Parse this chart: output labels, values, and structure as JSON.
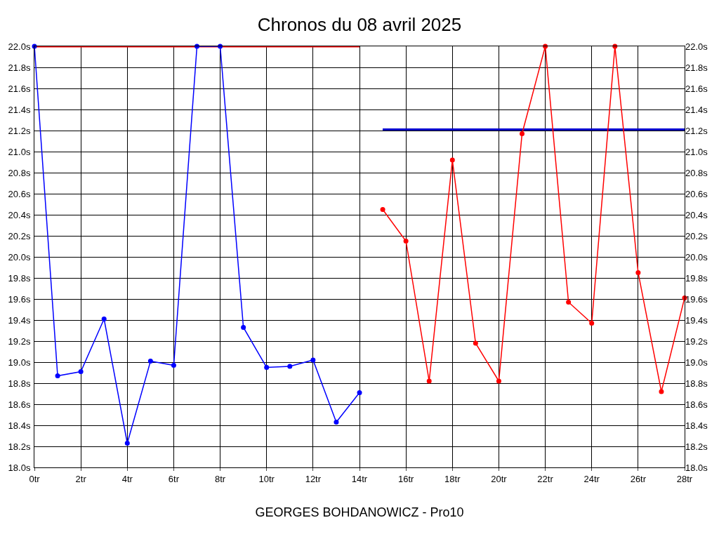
{
  "chart_data": {
    "type": "line",
    "title": "Chronos du 08 avril 2025",
    "xlabel": "GEORGES BOHDANOWICZ - Pro10",
    "series": [
      {
        "color": "#ff0000",
        "marker": "none",
        "x": [
          0,
          14
        ],
        "values": [
          22.0,
          22.0
        ]
      },
      {
        "color": "#0000cc",
        "marker": "none",
        "x": [
          15,
          28
        ],
        "values": [
          21.21,
          21.21
        ]
      },
      {
        "color": "#0000ff",
        "x": [
          0,
          1,
          2,
          3,
          4,
          5,
          6,
          7,
          8,
          9,
          10,
          11,
          12,
          13,
          14
        ],
        "values": [
          22.0,
          18.87,
          18.91,
          19.41,
          18.23,
          19.01,
          18.97,
          22.0,
          22.0,
          19.33,
          18.95,
          18.96,
          19.02,
          18.43,
          18.71
        ]
      },
      {
        "color": "#ff0000",
        "x": [
          15,
          16,
          17,
          18,
          19,
          20,
          21,
          22,
          23,
          24,
          25,
          26,
          27,
          28
        ],
        "values": [
          20.45,
          20.15,
          18.82,
          20.92,
          19.18,
          18.82,
          21.17,
          22.0,
          19.57,
          19.37,
          22.0,
          19.85,
          18.72,
          19.61
        ]
      }
    ],
    "marker": "circle",
    "line_style": "solid",
    "grid": true,
    "xlim": [
      0,
      28
    ],
    "xticks": [
      {
        "value": 0,
        "label": "0tr"
      },
      {
        "value": 2,
        "label": "2tr"
      },
      {
        "value": 4,
        "label": "4tr"
      },
      {
        "value": 6,
        "label": "6tr"
      },
      {
        "value": 8,
        "label": "8tr"
      },
      {
        "value": 10,
        "label": "10tr"
      },
      {
        "value": 12,
        "label": "12tr"
      },
      {
        "value": 14,
        "label": "14tr"
      },
      {
        "value": 16,
        "label": "16tr"
      },
      {
        "value": 18,
        "label": "18tr"
      },
      {
        "value": 20,
        "label": "20tr"
      },
      {
        "value": 22,
        "label": "22tr"
      },
      {
        "value": 24,
        "label": "24tr"
      },
      {
        "value": 26,
        "label": "26tr"
      },
      {
        "value": 28,
        "label": "28tr"
      }
    ],
    "ylim": [
      18.0,
      22.0
    ],
    "yticks": [
      {
        "value": 18.0,
        "label": "18.0s"
      },
      {
        "value": 18.2,
        "label": "18.2s"
      },
      {
        "value": 18.4,
        "label": "18.4s"
      },
      {
        "value": 18.6,
        "label": "18.6s"
      },
      {
        "value": 18.8,
        "label": "18.8s"
      },
      {
        "value": 19.0,
        "label": "19.0s"
      },
      {
        "value": 19.2,
        "label": "19.2s"
      },
      {
        "value": 19.4,
        "label": "19.4s"
      },
      {
        "value": 19.6,
        "label": "19.6s"
      },
      {
        "value": 19.8,
        "label": "19.8s"
      },
      {
        "value": 20.0,
        "label": "20.0s"
      },
      {
        "value": 20.2,
        "label": "20.2s"
      },
      {
        "value": 20.4,
        "label": "20.4s"
      },
      {
        "value": 20.6,
        "label": "20.6s"
      },
      {
        "value": 20.8,
        "label": "20.8s"
      },
      {
        "value": 21.0,
        "label": "21.0s"
      },
      {
        "value": 21.2,
        "label": "21.2s"
      },
      {
        "value": 21.4,
        "label": "21.4s"
      },
      {
        "value": 21.6,
        "label": "21.6s"
      },
      {
        "value": 21.8,
        "label": "21.8s"
      },
      {
        "value": 22.0,
        "label": "22.0s"
      }
    ],
    "y2lim": [
      18.0,
      22.0
    ],
    "y2ticks": [
      {
        "value": 18.0,
        "label": "18.0s"
      },
      {
        "value": 18.2,
        "label": "18.2s"
      },
      {
        "value": 18.4,
        "label": "18.4s"
      },
      {
        "value": 18.6,
        "label": "18.6s"
      },
      {
        "value": 18.8,
        "label": "18.8s"
      },
      {
        "value": 19.0,
        "label": "19.0s"
      },
      {
        "value": 19.2,
        "label": "19.2s"
      },
      {
        "value": 19.4,
        "label": "19.4s"
      },
      {
        "value": 19.6,
        "label": "19.6s"
      },
      {
        "value": 19.8,
        "label": "19.8s"
      },
      {
        "value": 20.0,
        "label": "20.0s"
      },
      {
        "value": 20.2,
        "label": "20.2s"
      },
      {
        "value": 20.4,
        "label": "20.4s"
      },
      {
        "value": 20.6,
        "label": "20.6s"
      },
      {
        "value": 20.8,
        "label": "20.8s"
      },
      {
        "value": 21.0,
        "label": "21.0s"
      },
      {
        "value": 21.2,
        "label": "21.2s"
      },
      {
        "value": 21.4,
        "label": "21.4s"
      },
      {
        "value": 21.6,
        "label": "21.6s"
      },
      {
        "value": 21.8,
        "label": "21.8s"
      },
      {
        "value": 22.0,
        "label": "22.0s"
      }
    ]
  }
}
